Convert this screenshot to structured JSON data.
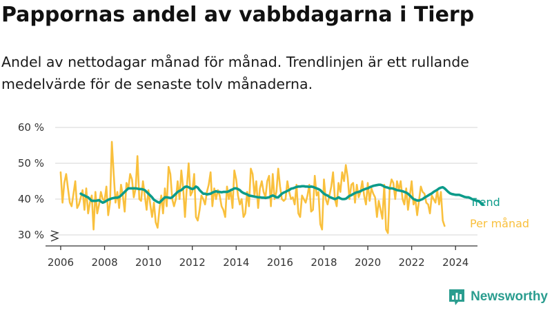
{
  "header": {
    "title": "Pappornas andel av vabbdagarna i Tierp",
    "subtitle": "Andel av nettodagar månad för månad. Trendlinjen är ett rullande medelvärde för de senaste tolv månaderna."
  },
  "brand": {
    "name": "Newsworthy",
    "icon": "newsworthy-logo-icon",
    "color": "#2a9d8f"
  },
  "chart_data": {
    "type": "line",
    "title": "Pappornas andel av vabbdagarna i Tierp",
    "xlabel": "",
    "ylabel": "",
    "xlim": [
      2005.75,
      2025.0
    ],
    "ylim": [
      30,
      60
    ],
    "y_axis_break": true,
    "grid": true,
    "yticks": [
      {
        "value": 30,
        "label": "30 %"
      },
      {
        "value": 40,
        "label": "40 %"
      },
      {
        "value": 50,
        "label": "50 %"
      },
      {
        "value": 60,
        "label": "60 %"
      }
    ],
    "xticks": [
      {
        "value": 2006,
        "label": "2006"
      },
      {
        "value": 2008,
        "label": "2008"
      },
      {
        "value": 2010,
        "label": "2010"
      },
      {
        "value": 2012,
        "label": "2012"
      },
      {
        "value": 2014,
        "label": "2014"
      },
      {
        "value": 2016,
        "label": "2016"
      },
      {
        "value": 2018,
        "label": "2018"
      },
      {
        "value": 2020,
        "label": "2020"
      },
      {
        "value": 2022,
        "label": "2022"
      },
      {
        "value": 2024,
        "label": "2024"
      }
    ],
    "series": [
      {
        "name": "Per månad",
        "color": "#f9c03d",
        "start": 2006.0,
        "step": 0.0833333,
        "values": [
          47.5,
          39,
          44.5,
          47,
          43,
          39,
          38,
          41.5,
          45,
          37.5,
          38.5,
          40.5,
          42.5,
          37,
          43,
          36,
          39,
          41,
          31.5,
          42,
          36,
          38.5,
          42,
          40,
          39.5,
          43.5,
          35.5,
          39,
          56,
          47,
          39,
          42,
          37.5,
          44,
          41,
          36.5,
          44.5,
          43,
          47,
          45.5,
          40.5,
          43,
          52,
          40,
          39.5,
          45,
          41,
          37,
          42.5,
          38.5,
          35,
          39,
          33.5,
          32,
          37,
          41,
          36,
          43,
          38,
          49,
          47,
          40,
          38,
          40,
          45,
          40,
          48,
          43,
          35,
          43.5,
          50,
          41,
          42,
          47,
          35,
          34,
          37,
          41,
          40,
          38.5,
          42,
          44,
          47.5,
          38,
          43,
          40,
          42.5,
          41,
          38,
          37,
          35,
          43.5,
          40,
          42.5,
          37.5,
          48,
          45.5,
          41,
          38.5,
          40,
          35,
          36,
          42,
          38,
          48.5,
          47,
          41,
          45,
          37.5,
          43,
          45,
          42,
          40.5,
          45,
          46.5,
          38,
          47,
          40,
          42,
          48.5,
          43.5,
          40,
          39.5,
          40,
          45,
          42,
          40,
          40.5,
          38.5,
          44,
          36,
          35,
          41,
          40,
          39,
          41,
          44,
          36.5,
          37,
          46.5,
          41,
          42,
          33,
          31.5,
          45.5,
          40,
          38.5,
          41,
          43.5,
          47.5,
          40,
          38,
          44.5,
          42,
          47.5,
          45,
          49.5,
          46,
          40,
          44,
          44.5,
          39,
          44,
          40.5,
          42,
          45,
          41,
          38.5,
          44.5,
          39.5,
          43,
          41.5,
          40.5,
          35,
          39.5,
          37,
          34.5,
          44,
          31.5,
          30.5,
          43,
          45.5,
          44.5,
          40,
          45,
          42.5,
          45,
          40,
          38.5,
          43,
          37,
          41,
          45,
          38.5,
          40,
          35.5,
          39.5,
          43.5,
          42,
          41.5,
          39,
          38.5,
          36,
          41,
          40,
          39,
          42.5,
          38.5,
          42,
          34,
          32.5
        ]
      },
      {
        "name": "Trend",
        "color": "#0c9b8a",
        "start": 2006.9167,
        "step": 0.0833333,
        "values": [
          41.5,
          41.2,
          41,
          40.7,
          40.5,
          40,
          39.5,
          39.5,
          39.5,
          39.6,
          39.7,
          39.3,
          39.0,
          39.2,
          39.5,
          39.8,
          40,
          40.2,
          40.3,
          40.4,
          40.4,
          40.6,
          41,
          41.5,
          42,
          42.5,
          43,
          43,
          43,
          43,
          43,
          42.9,
          42.8,
          42.8,
          42.7,
          42.5,
          42,
          41.5,
          41,
          40.5,
          39.8,
          39.5,
          39.2,
          39,
          39.5,
          40,
          40.5,
          40.5,
          40.4,
          40.3,
          40.5,
          41,
          41.5,
          42,
          42.3,
          42.5,
          43,
          43.4,
          43.5,
          43.3,
          43,
          42.8,
          43,
          43.5,
          43.2,
          42.5,
          42,
          41.5,
          41.5,
          41.3,
          41.4,
          41.5,
          41.8,
          42,
          42.2,
          42,
          42,
          41.9,
          42,
          42,
          42,
          42.2,
          42.5,
          42.7,
          43,
          43,
          42.8,
          42.5,
          42,
          41.7,
          41.5,
          41.3,
          41,
          40.9,
          40.8,
          40.7,
          40.6,
          40.5,
          40.5,
          40.4,
          40.4,
          40.3,
          40.4,
          40.5,
          40.8,
          41,
          40.8,
          40.5,
          40.5,
          41,
          41.5,
          41.8,
          42,
          42.3,
          42.5,
          42.9,
          43,
          43.2,
          43.4,
          43.5,
          43.5,
          43.6,
          43.6,
          43.5,
          43.5,
          43.4,
          43.5,
          43.4,
          43.2,
          43,
          42.8,
          42.5,
          42,
          41.5,
          41.2,
          41,
          40.6,
          40.4,
          40.2,
          40,
          40.2,
          40.5,
          40.2,
          40,
          40,
          40.1,
          40.5,
          40.9,
          41.1,
          41.4,
          41.7,
          41.9,
          42,
          42.2,
          42.5,
          42.7,
          42.9,
          43,
          43.3,
          43.5,
          43.7,
          43.8,
          43.9,
          44,
          44,
          43.8,
          43.5,
          43.3,
          43.2,
          43,
          43,
          42.9,
          42.7,
          42.5,
          42.4,
          42.3,
          42.2,
          42,
          41.8,
          41.5,
          41,
          40.5,
          40,
          39.8,
          39.6,
          39.6,
          39.8,
          40,
          40.4,
          40.7,
          41,
          41.3,
          41.6,
          42,
          42.3,
          42.6,
          43,
          43.2,
          43.3,
          43,
          42.5,
          42,
          41.6,
          41.4,
          41.3,
          41.2,
          41.2,
          41.2,
          41,
          40.8,
          40.6,
          40.5,
          40.5,
          40.3,
          40,
          39.8,
          39.6,
          39.5,
          39.3,
          38.8,
          38.5
        ]
      }
    ]
  }
}
